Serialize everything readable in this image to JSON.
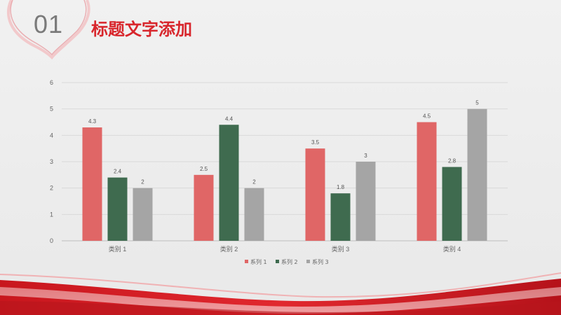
{
  "slide": {
    "number": "01",
    "title": "标题文字添加"
  },
  "colors": {
    "accent": "#d8262c",
    "series": [
      "#e06666",
      "#3f6b4f",
      "#a5a5a5"
    ]
  },
  "chart_data": {
    "type": "bar",
    "categories": [
      "类别 1",
      "类别 2",
      "类别 3",
      "类别 4"
    ],
    "series": [
      {
        "name": "系列 1",
        "values": [
          4.3,
          2.5,
          3.5,
          4.5
        ]
      },
      {
        "name": "系列 2",
        "values": [
          2.4,
          4.4,
          1.8,
          2.8
        ]
      },
      {
        "name": "系列 3",
        "values": [
          2,
          2,
          3,
          5
        ]
      }
    ],
    "ylim": [
      0,
      6
    ],
    "yticks": [
      0,
      1,
      2,
      3,
      4,
      5,
      6
    ],
    "grid": true,
    "legend": "bottom"
  }
}
